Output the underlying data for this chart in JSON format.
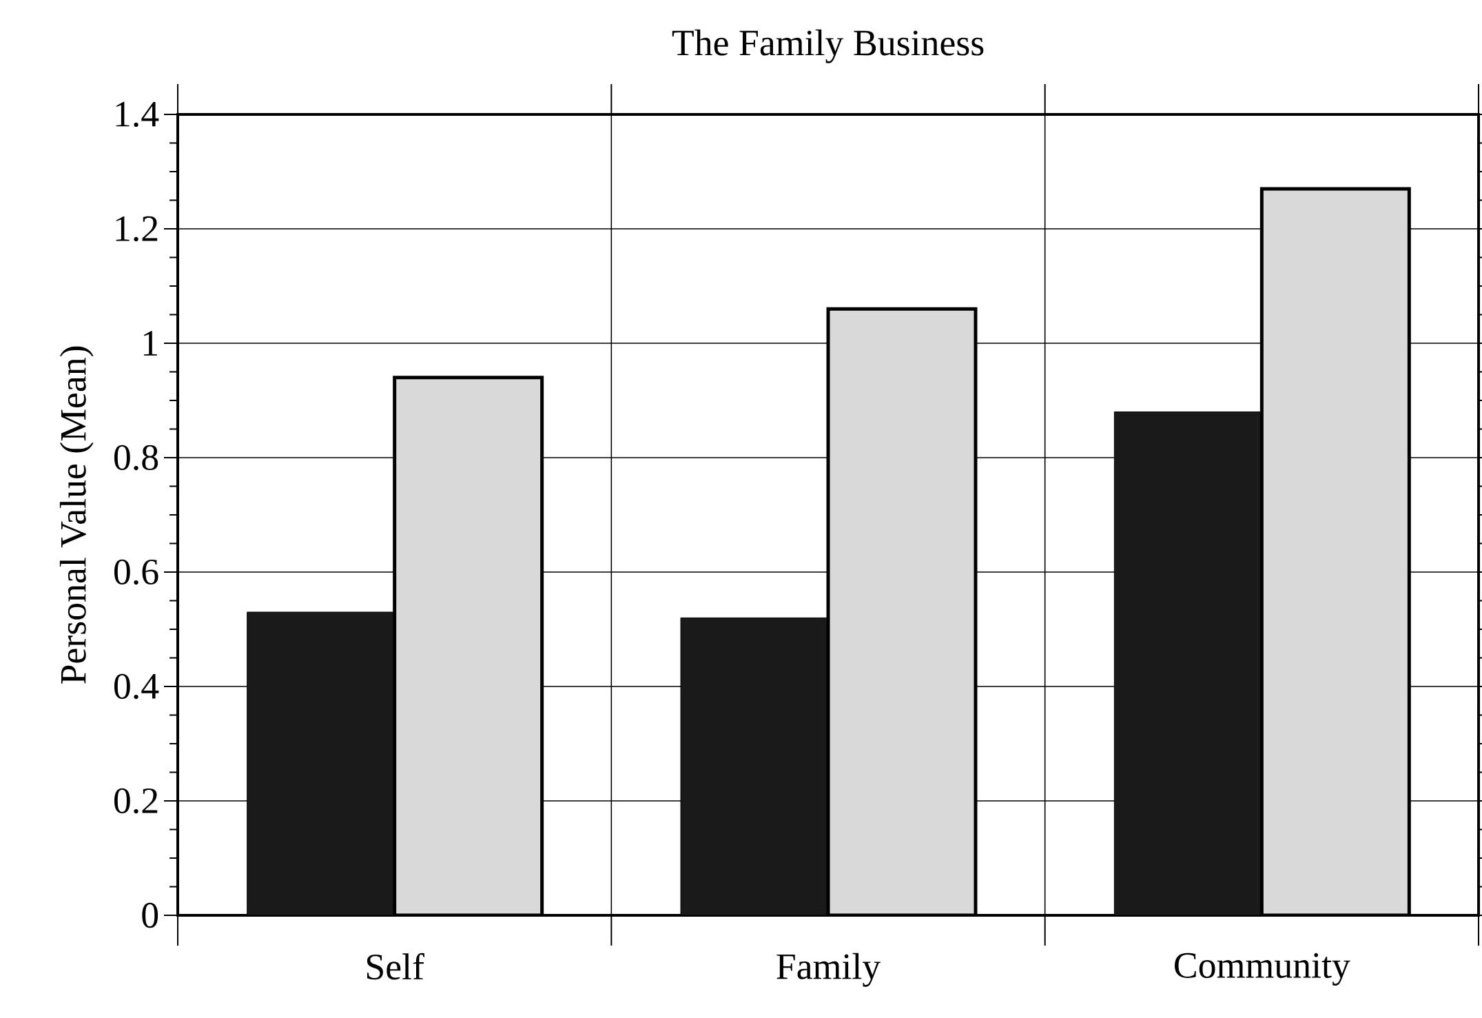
{
  "chart_data": {
    "type": "bar",
    "title": "The Family Business",
    "ylabel": "Personal Value (Mean)",
    "categories": [
      "Self",
      "Family",
      "Community"
    ],
    "series": [
      {
        "color": "#1a1a1a",
        "values": [
          0.53,
          0.52,
          0.88
        ]
      },
      {
        "color": "#d9d9d9",
        "values": [
          0.94,
          1.06,
          1.27
        ]
      }
    ],
    "ylim": [
      0,
      1.4
    ],
    "yticks": [
      0,
      0.2,
      0.4,
      0.6,
      0.8,
      1,
      1.2,
      1.4
    ],
    "grid": true
  }
}
